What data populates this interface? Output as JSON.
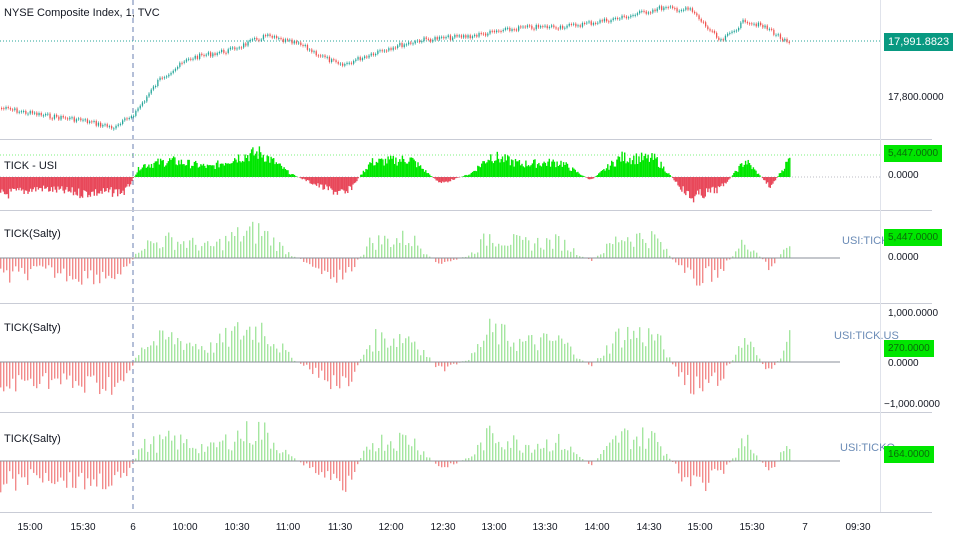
{
  "main_pane": {
    "title": "NYSE Composite Index, 1, TVC",
    "last_price": "17,991.8823",
    "last_price_color": "#089981",
    "axis_label": "17,800.0000"
  },
  "panes": [
    {
      "title": "TICK - USI",
      "value_tag": "5,447.0000",
      "zero_label": "0.0000",
      "symbol": ""
    },
    {
      "title": "TICK(Salty)",
      "value_tag": "5,447.0000",
      "zero_label": "0.0000",
      "symbol": "USI:TICK"
    },
    {
      "title": "TICK(Salty)",
      "value_tag": "270.0000",
      "upper_label": "1,000.0000",
      "zero_label": "0.0000",
      "lower_label": "−1,000.0000",
      "symbol": "USI:TICK.US"
    },
    {
      "title": "TICK(Salty)",
      "value_tag": "164.0000",
      "symbol": "USI:TICKQ"
    }
  ],
  "time_axis": [
    "15:00",
    "15:30",
    "6",
    "10:00",
    "10:30",
    "11:00",
    "11:30",
    "12:00",
    "12:30",
    "13:00",
    "13:30",
    "14:00",
    "14:30",
    "15:00",
    "15:30",
    "7",
    "09:30"
  ],
  "colors": {
    "up_candle": "#26a69a",
    "down_candle": "#ef5350",
    "tick_positive": "#00e600",
    "tick_negative": "#e8485a",
    "salty_positive": "#a5e6a0",
    "salty_negative": "#f28b8b",
    "session_line": "#6a7fb0"
  }
}
